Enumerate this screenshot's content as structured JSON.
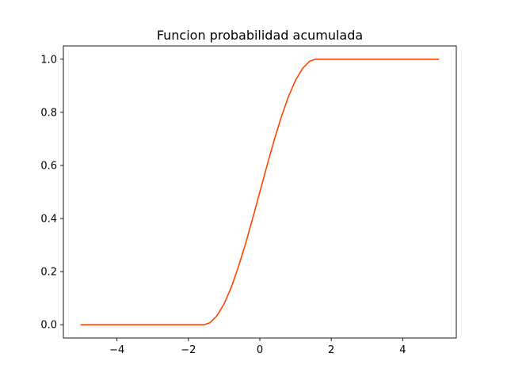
{
  "chart_data": {
    "type": "line",
    "title": "Funcion probabilidad acumulada",
    "xlabel": "",
    "ylabel": "",
    "xlim": [
      -5.5,
      5.5
    ],
    "ylim": [
      -0.05,
      1.05
    ],
    "xticks": [
      -4,
      -2,
      0,
      2,
      4
    ],
    "xtick_labels": [
      "−4",
      "−2",
      "0",
      "2",
      "4"
    ],
    "yticks": [
      0.0,
      0.2,
      0.4,
      0.6,
      0.8,
      1.0
    ],
    "ytick_labels": [
      "0.0",
      "0.2",
      "0.4",
      "0.6",
      "0.8",
      "1.0"
    ],
    "grid": false,
    "series": [
      {
        "color": "#ff4500",
        "x": [
          -5.0,
          -1.57,
          -1.4,
          -1.2,
          -1.0,
          -0.8,
          -0.6,
          -0.4,
          -0.2,
          0.0,
          0.2,
          0.4,
          0.6,
          0.8,
          1.0,
          1.2,
          1.4,
          1.57,
          5.0
        ],
        "y": [
          0.0,
          0.0,
          0.0075,
          0.034,
          0.079,
          0.141,
          0.218,
          0.305,
          0.401,
          0.5,
          0.599,
          0.695,
          0.782,
          0.859,
          0.921,
          0.966,
          0.993,
          1.0,
          1.0
        ]
      }
    ]
  }
}
